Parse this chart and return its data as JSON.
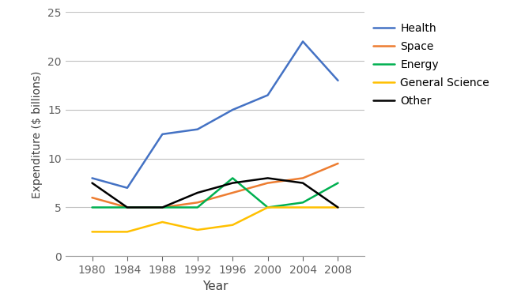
{
  "years": [
    1980,
    1984,
    1988,
    1992,
    1996,
    2000,
    2004,
    2008
  ],
  "series": {
    "Health": {
      "values": [
        8.0,
        7.0,
        12.5,
        13.0,
        15.0,
        16.5,
        22.0,
        18.0
      ],
      "color": "#4472C4",
      "linewidth": 1.8
    },
    "Space": {
      "values": [
        6.0,
        5.0,
        5.0,
        5.5,
        6.5,
        7.5,
        8.0,
        9.5
      ],
      "color": "#ED7D31",
      "linewidth": 1.8
    },
    "Energy": {
      "values": [
        5.0,
        5.0,
        5.0,
        5.0,
        8.0,
        5.0,
        5.5,
        7.5
      ],
      "color": "#00B050",
      "linewidth": 1.8
    },
    "General Science": {
      "values": [
        2.5,
        2.5,
        3.5,
        2.7,
        3.2,
        5.0,
        5.0,
        5.0
      ],
      "color": "#FFC000",
      "linewidth": 1.8
    },
    "Other": {
      "values": [
        7.5,
        5.0,
        5.0,
        6.5,
        7.5,
        8.0,
        7.5,
        5.0
      ],
      "color": "#000000",
      "linewidth": 1.8
    }
  },
  "xlabel": "Year",
  "ylabel": "Expenditure ($ billions)",
  "xlim": [
    1977,
    2011
  ],
  "ylim": [
    0,
    25
  ],
  "yticks": [
    0,
    5,
    10,
    15,
    20,
    25
  ],
  "xticks": [
    1980,
    1984,
    1988,
    1992,
    1996,
    2000,
    2004,
    2008
  ],
  "legend_order": [
    "Health",
    "Space",
    "Energy",
    "General Science",
    "Other"
  ],
  "background_color": "#ffffff",
  "grid_color": "#c0c0c0",
  "tick_color": "#606060",
  "spine_color": "#a0a0a0"
}
